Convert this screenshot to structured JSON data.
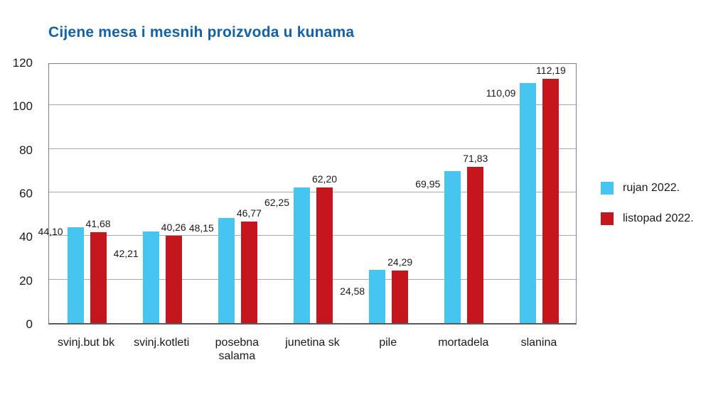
{
  "title": "Cijene mesa i mesnih proizvoda u kunama",
  "colors": {
    "title": "#1161AC",
    "series_rujan": "#45C5F0",
    "series_listopad": "#C4161C",
    "gridline": "#ABABAB",
    "frame": "#7F7F7F",
    "axis_line": "#595959",
    "text": "#1A1A1A",
    "background": "#FFFFFF"
  },
  "chart_data": {
    "type": "bar",
    "title": "Cijene mesa i mesnih proizvoda u kunama",
    "categories": [
      "svinj.but bk",
      "svinj.kotleti",
      "posebna salama",
      "junetina sk",
      "pile",
      "mortadela",
      "slanina"
    ],
    "series": [
      {
        "name": "rujan 2022.",
        "color": "#45C5F0",
        "values": [
          44.1,
          42.21,
          48.15,
          62.25,
          24.58,
          69.95,
          110.09
        ],
        "value_labels": [
          "44,10",
          "42,21",
          "48,15",
          "62,25",
          "24,58",
          "69,95",
          "110,09"
        ]
      },
      {
        "name": "listopad 2022.",
        "color": "#C4161C",
        "values": [
          41.68,
          40.26,
          46.77,
          62.2,
          24.29,
          71.83,
          112.19
        ],
        "value_labels": [
          "41,68",
          "40,26",
          "46,77",
          "62,20",
          "24,29",
          "71,83",
          "112,19"
        ]
      }
    ],
    "xlabel": "",
    "ylabel": "",
    "ylim": [
      0,
      120
    ],
    "yticks": [
      0,
      20,
      40,
      60,
      80,
      100,
      120
    ],
    "grid": "horizontal",
    "legend_position": "right-middle",
    "value_label_decimal_separator": ","
  }
}
